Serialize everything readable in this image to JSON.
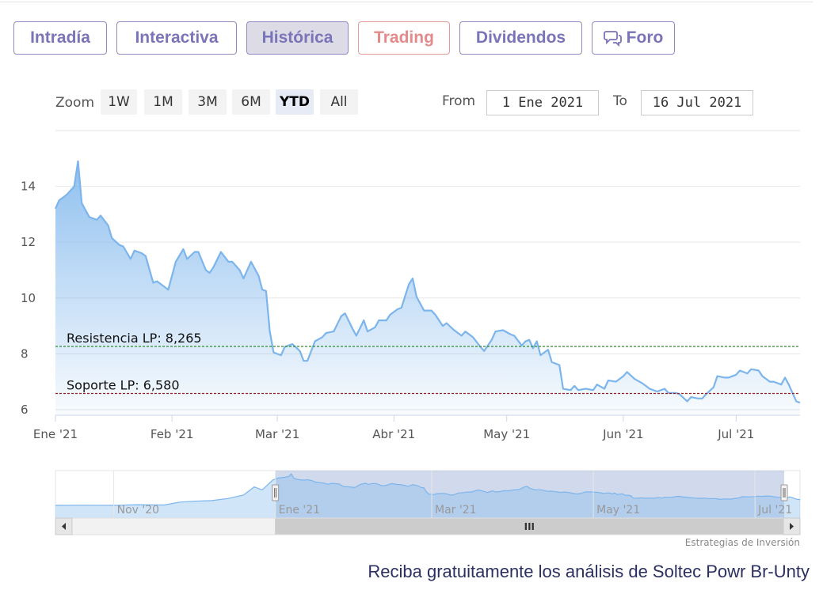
{
  "tabs": [
    {
      "label": "Intradía",
      "state": "normal"
    },
    {
      "label": "Interactiva",
      "state": "normal"
    },
    {
      "label": "Histórica",
      "state": "active"
    },
    {
      "label": "Trading",
      "state": "trading"
    },
    {
      "label": "Dividendos",
      "state": "normal"
    },
    {
      "label": "Foro",
      "state": "normal",
      "icon": "chat-bubbles-icon"
    }
  ],
  "toolbar": {
    "zoom_label": "Zoom",
    "zoom_buttons": [
      "1W",
      "1M",
      "3M",
      "6M",
      "YTD",
      "All"
    ],
    "zoom_selected": "YTD",
    "from_label": "From",
    "from_value": "1 Ene 2021",
    "to_label": "To",
    "to_value": "16 Jul 2021"
  },
  "chart_data": {
    "type": "area",
    "title": "",
    "xlabel": "",
    "ylabel": "",
    "x_range": [
      "2021-01-01",
      "2021-07-16"
    ],
    "ylim": [
      5.8,
      16
    ],
    "y_ticks": [
      6,
      8,
      10,
      12,
      14
    ],
    "x_ticks": [
      {
        "date": "2021-01-01",
        "label": "Ene '21"
      },
      {
        "date": "2021-02-01",
        "label": "Feb '21"
      },
      {
        "date": "2021-03-01",
        "label": "Mar '21"
      },
      {
        "date": "2021-04-01",
        "label": "Abr '21"
      },
      {
        "date": "2021-05-01",
        "label": "May '21"
      },
      {
        "date": "2021-06-01",
        "label": "Jun '21"
      },
      {
        "date": "2021-07-01",
        "label": "Jul '21"
      }
    ],
    "grid": "horizontal",
    "colors": {
      "line": "#7cb5ec",
      "fill_top": "#7cb5ec",
      "fill_bottom": "#ffffff"
    },
    "series": [
      {
        "points": [
          [
            "2021-01-01",
            13.2
          ],
          [
            "2021-01-02",
            13.5
          ],
          [
            "2021-01-04",
            13.7
          ],
          [
            "2021-01-06",
            14.0
          ],
          [
            "2021-01-07",
            14.9
          ],
          [
            "2021-01-08",
            13.4
          ],
          [
            "2021-01-10",
            12.9
          ],
          [
            "2021-01-12",
            12.8
          ],
          [
            "2021-01-13",
            12.95
          ],
          [
            "2021-01-15",
            12.6
          ],
          [
            "2021-01-16",
            12.15
          ],
          [
            "2021-01-18",
            11.9
          ],
          [
            "2021-01-19",
            11.85
          ],
          [
            "2021-01-21",
            11.4
          ],
          [
            "2021-01-22",
            11.7
          ],
          [
            "2021-01-24",
            11.6
          ],
          [
            "2021-01-25",
            11.5
          ],
          [
            "2021-01-27",
            10.55
          ],
          [
            "2021-01-28",
            10.6
          ],
          [
            "2021-01-29",
            10.5
          ],
          [
            "2021-01-31",
            10.3
          ],
          [
            "2021-02-02",
            11.3
          ],
          [
            "2021-02-04",
            11.75
          ],
          [
            "2021-02-05",
            11.4
          ],
          [
            "2021-02-07",
            11.65
          ],
          [
            "2021-02-08",
            11.65
          ],
          [
            "2021-02-10",
            11.0
          ],
          [
            "2021-02-11",
            10.9
          ],
          [
            "2021-02-12",
            11.1
          ],
          [
            "2021-02-14",
            11.65
          ],
          [
            "2021-02-16",
            11.3
          ],
          [
            "2021-02-17",
            11.3
          ],
          [
            "2021-02-19",
            11.0
          ],
          [
            "2021-02-20",
            10.7
          ],
          [
            "2021-02-22",
            11.3
          ],
          [
            "2021-02-24",
            10.8
          ],
          [
            "2021-02-25",
            10.3
          ],
          [
            "2021-02-26",
            10.25
          ],
          [
            "2021-02-27",
            8.8
          ],
          [
            "2021-02-28",
            8.05
          ],
          [
            "2021-03-02",
            7.95
          ],
          [
            "2021-03-03",
            8.25
          ],
          [
            "2021-03-05",
            8.35
          ],
          [
            "2021-03-07",
            8.1
          ],
          [
            "2021-03-08",
            7.75
          ],
          [
            "2021-03-09",
            7.75
          ],
          [
            "2021-03-11",
            8.45
          ],
          [
            "2021-03-13",
            8.6
          ],
          [
            "2021-03-14",
            8.75
          ],
          [
            "2021-03-16",
            8.8
          ],
          [
            "2021-03-18",
            9.35
          ],
          [
            "2021-03-19",
            9.45
          ],
          [
            "2021-03-21",
            8.9
          ],
          [
            "2021-03-22",
            8.65
          ],
          [
            "2021-03-24",
            9.2
          ],
          [
            "2021-03-25",
            8.8
          ],
          [
            "2021-03-27",
            8.95
          ],
          [
            "2021-03-28",
            9.2
          ],
          [
            "2021-03-30",
            9.2
          ],
          [
            "2021-03-31",
            9.4
          ],
          [
            "2021-04-02",
            9.6
          ],
          [
            "2021-04-03",
            9.65
          ],
          [
            "2021-04-05",
            10.5
          ],
          [
            "2021-04-06",
            10.7
          ],
          [
            "2021-04-07",
            10.05
          ],
          [
            "2021-04-09",
            9.55
          ],
          [
            "2021-04-11",
            9.55
          ],
          [
            "2021-04-12",
            9.4
          ],
          [
            "2021-04-14",
            9.0
          ],
          [
            "2021-04-15",
            9.1
          ],
          [
            "2021-04-17",
            8.85
          ],
          [
            "2021-04-19",
            8.65
          ],
          [
            "2021-04-20",
            8.8
          ],
          [
            "2021-04-22",
            8.6
          ],
          [
            "2021-04-24",
            8.25
          ],
          [
            "2021-04-25",
            8.1
          ],
          [
            "2021-04-27",
            8.5
          ],
          [
            "2021-04-28",
            8.8
          ],
          [
            "2021-04-30",
            8.85
          ],
          [
            "2021-05-02",
            8.7
          ],
          [
            "2021-05-03",
            8.65
          ],
          [
            "2021-05-05",
            8.3
          ],
          [
            "2021-05-06",
            8.45
          ],
          [
            "2021-05-07",
            8.5
          ],
          [
            "2021-05-08",
            8.2
          ],
          [
            "2021-05-09",
            8.45
          ],
          [
            "2021-05-10",
            7.95
          ],
          [
            "2021-05-12",
            8.15
          ],
          [
            "2021-05-13",
            7.7
          ],
          [
            "2021-05-15",
            7.6
          ],
          [
            "2021-05-16",
            6.75
          ],
          [
            "2021-05-18",
            6.7
          ],
          [
            "2021-05-19",
            6.85
          ],
          [
            "2021-05-20",
            6.7
          ],
          [
            "2021-05-22",
            6.75
          ],
          [
            "2021-05-24",
            6.7
          ],
          [
            "2021-05-25",
            6.9
          ],
          [
            "2021-05-27",
            6.75
          ],
          [
            "2021-05-28",
            7.05
          ],
          [
            "2021-05-30",
            7.0
          ],
          [
            "2021-06-01",
            7.2
          ],
          [
            "2021-06-02",
            7.35
          ],
          [
            "2021-06-04",
            7.1
          ],
          [
            "2021-06-06",
            6.95
          ],
          [
            "2021-06-07",
            6.85
          ],
          [
            "2021-06-08",
            6.75
          ],
          [
            "2021-06-10",
            6.65
          ],
          [
            "2021-06-12",
            6.75
          ],
          [
            "2021-06-13",
            6.6
          ],
          [
            "2021-06-15",
            6.6
          ],
          [
            "2021-06-16",
            6.55
          ],
          [
            "2021-06-18",
            6.3
          ],
          [
            "2021-06-19",
            6.45
          ],
          [
            "2021-06-21",
            6.4
          ],
          [
            "2021-06-22",
            6.4
          ],
          [
            "2021-06-23",
            6.55
          ],
          [
            "2021-06-25",
            6.8
          ],
          [
            "2021-06-26",
            7.2
          ],
          [
            "2021-06-28",
            7.15
          ],
          [
            "2021-06-29",
            7.15
          ],
          [
            "2021-07-01",
            7.25
          ],
          [
            "2021-07-02",
            7.4
          ],
          [
            "2021-07-04",
            7.3
          ],
          [
            "2021-07-05",
            7.45
          ],
          [
            "2021-07-07",
            7.4
          ],
          [
            "2021-07-08",
            7.2
          ],
          [
            "2021-07-09",
            7.1
          ],
          [
            "2021-07-10",
            7.0
          ],
          [
            "2021-07-11",
            7.0
          ],
          [
            "2021-07-12",
            6.95
          ],
          [
            "2021-07-13",
            6.9
          ],
          [
            "2021-07-14",
            7.15
          ],
          [
            "2021-07-15",
            6.9
          ],
          [
            "2021-07-16",
            6.6
          ],
          [
            "2021-07-17",
            6.3
          ],
          [
            "2021-07-18",
            6.25
          ]
        ]
      }
    ],
    "annotations": [
      {
        "label": "Resistencia LP: 8,265",
        "value": 8.265,
        "color": "#2e8b2e"
      },
      {
        "label": "Soporte LP: 6,580",
        "value": 6.58,
        "color": "#9b2020"
      }
    ],
    "navigator": {
      "x_range": [
        "2020-10-10",
        "2021-07-18"
      ],
      "selected_range": [
        "2021-01-01",
        "2021-07-18"
      ],
      "ylim": [
        0,
        16
      ],
      "tick_labels": [
        {
          "date": "2020-11-01",
          "label": "Nov '20"
        },
        {
          "date": "2021-01-01",
          "label": "Ene '21"
        },
        {
          "date": "2021-03-01",
          "label": "Mar '21"
        },
        {
          "date": "2021-05-01",
          "label": "May '21"
        },
        {
          "date": "2021-07-01",
          "label": "Jul '21"
        }
      ],
      "pre_points": [
        [
          "2020-10-10",
          4.3
        ],
        [
          "2020-10-20",
          4.35
        ],
        [
          "2020-11-01",
          4.3
        ],
        [
          "2020-11-10",
          4.5
        ],
        [
          "2020-11-20",
          4.4
        ],
        [
          "2020-11-26",
          5.4
        ],
        [
          "2020-12-02",
          5.7
        ],
        [
          "2020-12-08",
          5.9
        ],
        [
          "2020-12-14",
          6.6
        ],
        [
          "2020-12-20",
          7.8
        ],
        [
          "2020-12-24",
          10.5
        ],
        [
          "2020-12-27",
          9.5
        ],
        [
          "2020-12-31",
          12.8
        ]
      ],
      "scrollbar_thumb_glyph": "III"
    },
    "credits": "Estrategias de Inversión"
  },
  "footer_cta": "Reciba gratuitamente los análisis de Soltec Powr Br-Unty"
}
